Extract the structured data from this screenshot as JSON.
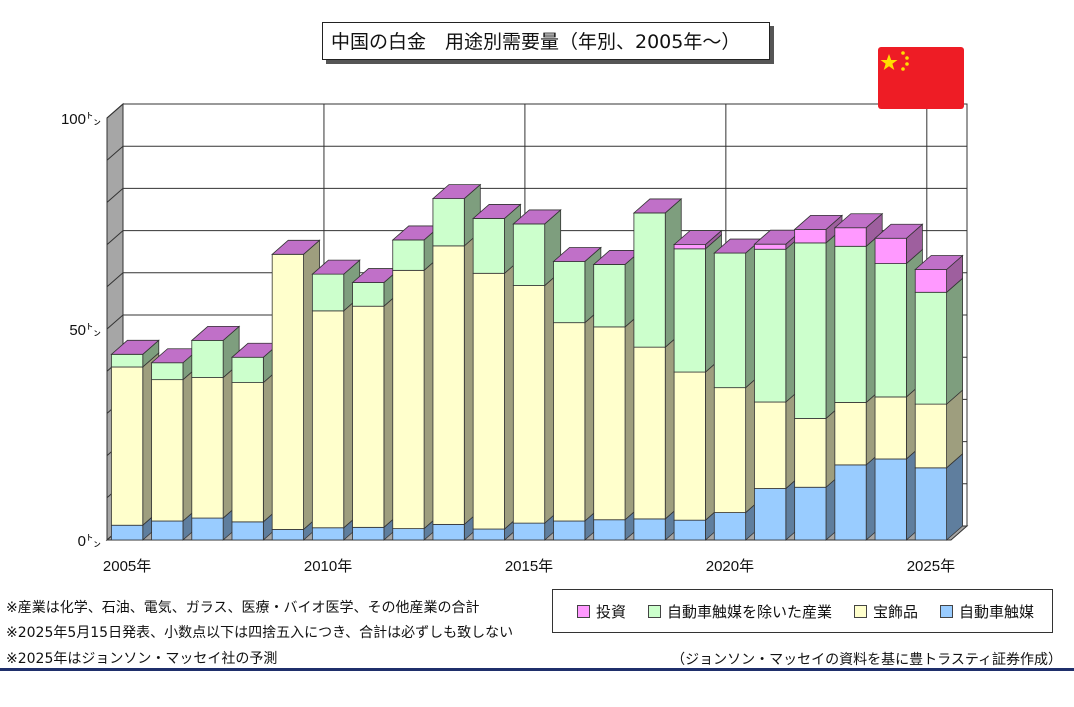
{
  "title": "中国の白金　用途別需要量（年別、2005年～）",
  "flag": {
    "country": "China",
    "colors": {
      "field": "#ee1c25",
      "stars": "#ffde00"
    }
  },
  "chart_data": {
    "type": "bar",
    "stacked": true,
    "style": "3d",
    "categories": [
      "2005",
      "2006",
      "2007",
      "2008",
      "2009",
      "2010",
      "2011",
      "2012",
      "2013",
      "2014",
      "2015",
      "2016",
      "2017",
      "2018",
      "2019",
      "2020",
      "2021",
      "2022",
      "2023",
      "2024",
      "2025"
    ],
    "x_tick_labels": [
      "2005年",
      "2010年",
      "2015年",
      "2020年",
      "2025年"
    ],
    "y_tick_labels": [
      "0㌧",
      "50㌧",
      "100㌧"
    ],
    "ylim": [
      0,
      100
    ],
    "grid": true,
    "series": [
      {
        "name": "自動車触媒",
        "color": "#99ccff",
        "values": [
          3.5,
          4.5,
          5.2,
          4.3,
          2.5,
          2.9,
          3.0,
          2.7,
          3.7,
          2.6,
          4.0,
          4.5,
          4.8,
          5.0,
          4.7,
          6.5,
          12.2,
          12.5,
          17.8,
          19.2,
          17.1
        ]
      },
      {
        "name": "宝飾品",
        "color": "#ffffcc",
        "values": [
          37.5,
          33.5,
          33.3,
          33.0,
          65.2,
          51.4,
          52.4,
          61.2,
          66.0,
          60.6,
          56.3,
          47.0,
          45.7,
          40.7,
          35.1,
          29.6,
          20.5,
          16.3,
          14.8,
          14.7,
          15.1
        ]
      },
      {
        "name": "自動車触媒を除いた産業",
        "color": "#ccffcc",
        "values": [
          3.0,
          4.0,
          8.8,
          6.0,
          0.0,
          8.7,
          5.6,
          7.2,
          11.2,
          13.0,
          14.6,
          14.5,
          14.8,
          31.8,
          29.2,
          31.9,
          36.2,
          41.6,
          37.0,
          31.6,
          26.5
        ]
      },
      {
        "name": "投資",
        "color": "#ff99ff",
        "values": [
          0,
          0,
          0,
          0,
          0,
          0,
          0,
          0,
          0,
          0,
          0,
          0,
          0,
          0,
          1.0,
          0,
          1.2,
          3.2,
          4.4,
          6.0,
          5.4
        ]
      }
    ],
    "legend": [
      "投資",
      "自動車触媒を除いた産業",
      "宝飾品",
      "自動車触媒"
    ],
    "legend_placement": "bottom-right"
  },
  "notes": [
    "※産業は化学、石油、電気、ガラス、医療・バイオ医学、その他産業の合計",
    "※2025年5月15日発表、小数点以下は四捨五入につき、合計は必ずしも致しない",
    "※2025年はジョンソン・マッセイ社の予測"
  ],
  "source": "（ジョンソン・マッセイの資料を基に豊トラスティ証券作成）"
}
